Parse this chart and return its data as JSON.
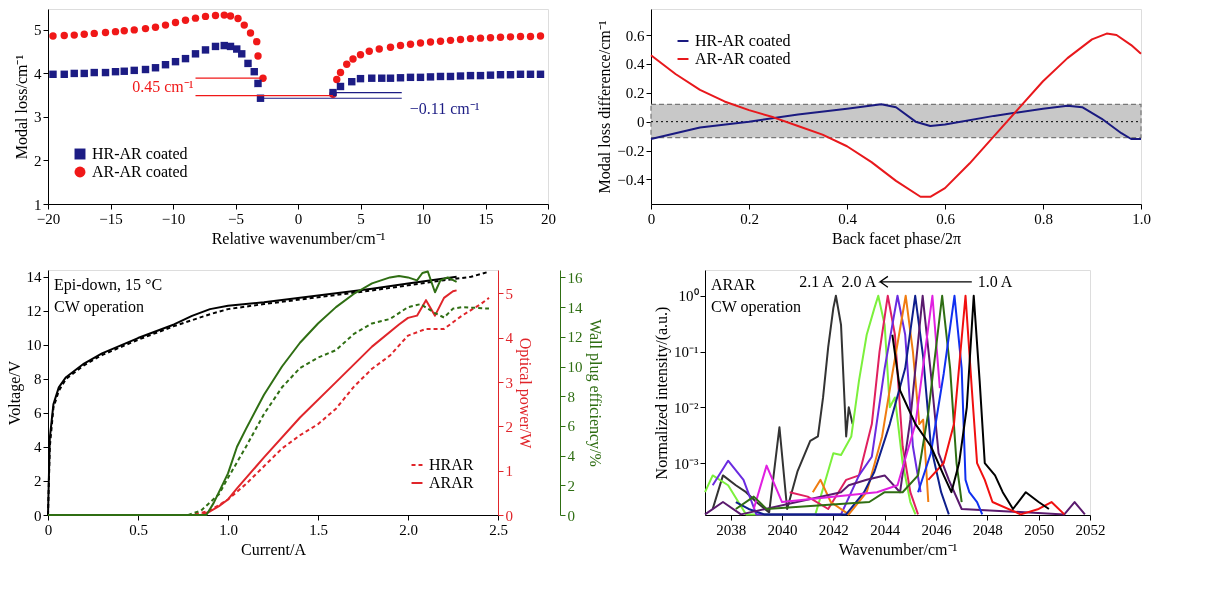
{
  "chart_data": [
    {
      "type": "scatter",
      "xlabel": "Relative wavenumber/cm⁻¹",
      "ylabel": "Modal loss/cm⁻¹",
      "xlim": [
        -20,
        20
      ],
      "ylim": [
        1,
        5.48
      ],
      "xticks": [
        {
          "value": -20,
          "label": "−20"
        },
        {
          "value": -15,
          "label": "−15"
        },
        {
          "value": -10,
          "label": "−10"
        },
        {
          "value": -5,
          "label": "−5"
        },
        0,
        5,
        10,
        15,
        20
      ],
      "yticks": [
        1,
        2,
        3,
        4,
        5
      ],
      "legend": "bottom left",
      "series": [
        {
          "name": "HR-AR coated",
          "color": "#1c1c84",
          "marker": "square",
          "x": [
            -19.6,
            -18.7,
            -17.9,
            -17.1,
            -16.3,
            -15.4,
            -14.6,
            -13.9,
            -13.1,
            -12.2,
            -11.4,
            -10.6,
            -9.8,
            -9.0,
            -8.2,
            -7.4,
            -6.6,
            -5.9,
            -5.4,
            -4.9,
            -4.5,
            -4.0,
            -3.5,
            -3.2,
            -3.0,
            2.8,
            3.4,
            4.3,
            5.0,
            5.9,
            6.7,
            7.4,
            8.2,
            9.0,
            9.8,
            10.6,
            11.4,
            12.2,
            13.0,
            13.8,
            14.6,
            15.4,
            16.2,
            17.0,
            17.8,
            18.6,
            19.4
          ],
          "values": [
            3.98,
            3.98,
            4.0,
            4.0,
            4.02,
            4.02,
            4.04,
            4.05,
            4.07,
            4.09,
            4.13,
            4.2,
            4.27,
            4.34,
            4.45,
            4.54,
            4.62,
            4.64,
            4.62,
            4.56,
            4.45,
            4.23,
            4.04,
            3.77,
            3.43,
            3.56,
            3.7,
            3.81,
            3.88,
            3.89,
            3.89,
            3.89,
            3.9,
            3.91,
            3.91,
            3.92,
            3.93,
            3.93,
            3.94,
            3.95,
            3.95,
            3.96,
            3.97,
            3.97,
            3.98,
            3.98,
            3.98
          ]
        },
        {
          "name": "AR-AR coated",
          "color": "#f01818",
          "marker": "circle",
          "x": [
            -19.6,
            -18.7,
            -17.9,
            -17.1,
            -16.3,
            -15.4,
            -14.6,
            -13.9,
            -13.1,
            -12.2,
            -11.4,
            -10.6,
            -9.8,
            -9.0,
            -8.2,
            -7.4,
            -6.6,
            -5.9,
            -5.4,
            -4.8,
            -4.3,
            -3.8,
            -3.3,
            -3.2,
            -2.8,
            2.8,
            3.1,
            3.4,
            3.9,
            4.4,
            5.0,
            5.7,
            6.5,
            7.4,
            8.2,
            9.0,
            9.8,
            10.6,
            11.4,
            12.2,
            13.0,
            13.8,
            14.6,
            15.4,
            16.2,
            17.0,
            17.8,
            18.6,
            19.4
          ],
          "values": [
            4.86,
            4.87,
            4.88,
            4.9,
            4.92,
            4.94,
            4.96,
            4.98,
            5.0,
            5.03,
            5.06,
            5.11,
            5.17,
            5.22,
            5.27,
            5.31,
            5.33,
            5.34,
            5.32,
            5.26,
            5.11,
            4.93,
            4.73,
            4.4,
            3.89,
            3.52,
            3.86,
            4.02,
            4.21,
            4.33,
            4.43,
            4.51,
            4.56,
            4.6,
            4.64,
            4.67,
            4.7,
            4.72,
            4.74,
            4.76,
            4.78,
            4.8,
            4.81,
            4.82,
            4.83,
            4.84,
            4.85,
            4.85,
            4.86
          ]
        },
        {
          "type": "line",
          "color": "#f01818",
          "x": [
            -8.2,
            -2.8
          ],
          "values": [
            3.89,
            3.89
          ]
        },
        {
          "type": "line",
          "color": "#f01818",
          "x": [
            -8.2,
            2.8
          ],
          "values": [
            3.49,
            3.49
          ]
        },
        {
          "type": "line",
          "color": "#1c1c84",
          "x": [
            2.8,
            8.3
          ],
          "values": [
            3.56,
            3.56
          ]
        },
        {
          "type": "line",
          "color": "#1c1c84",
          "x": [
            -2.8,
            8.3
          ],
          "values": [
            3.43,
            3.43
          ]
        }
      ],
      "annotations": [
        {
          "text": "0.45 cm⁻¹",
          "x": -8.2,
          "y": 3.49
        },
        {
          "text": "−0.11 cm⁻¹",
          "x": 8.3,
          "y": 3.43
        }
      ]
    },
    {
      "type": "line",
      "xlabel": "Back  facet phase/2π",
      "ylabel": "Modal loss difference/cm⁻¹",
      "xlim": [
        0,
        1
      ],
      "ylim": [
        -0.57,
        0.78
      ],
      "xticks": [
        0,
        0.2,
        0.4,
        0.6,
        0.8,
        {
          "value": 1,
          "label": "1.0"
        }
      ],
      "yticks": [
        {
          "value": -0.4,
          "label": "−0.4"
        },
        {
          "value": -0.2,
          "label": "−0.2"
        },
        0,
        0.2,
        0.4,
        0.6
      ],
      "legend": "top left",
      "bands": [
        {
          "axis": "y",
          "from": -0.11,
          "to": 0.12,
          "color": "#c8c8c8"
        }
      ],
      "ref_lines": [
        {
          "axis": "y",
          "value": 0,
          "color": "#000000",
          "line_style": "dotted"
        }
      ],
      "series": [
        {
          "name": "HR-AR coated",
          "color": "#1a1a80",
          "x": [
            0,
            0.1,
            0.2,
            0.3,
            0.4,
            0.47,
            0.5,
            0.54,
            0.57,
            0.6,
            0.7,
            0.8,
            0.85,
            0.88,
            0.92,
            0.96,
            0.98,
            1.0
          ],
          "values": [
            -0.12,
            -0.04,
            0.0,
            0.05,
            0.09,
            0.12,
            0.1,
            0.0,
            -0.03,
            -0.02,
            0.04,
            0.09,
            0.11,
            0.1,
            0.02,
            -0.08,
            -0.12,
            -0.12
          ]
        },
        {
          "name": "AR-AR coated",
          "color": "#e8181c",
          "x": [
            0,
            0.05,
            0.1,
            0.15,
            0.2,
            0.25,
            0.3,
            0.35,
            0.4,
            0.45,
            0.5,
            0.55,
            0.57,
            0.6,
            0.65,
            0.7,
            0.75,
            0.8,
            0.85,
            0.9,
            0.93,
            0.95,
            0.98,
            1.0
          ],
          "values": [
            0.46,
            0.33,
            0.22,
            0.14,
            0.08,
            0.03,
            -0.03,
            -0.09,
            -0.17,
            -0.28,
            -0.41,
            -0.52,
            -0.52,
            -0.46,
            -0.29,
            -0.1,
            0.09,
            0.28,
            0.44,
            0.57,
            0.61,
            0.6,
            0.53,
            0.47
          ]
        }
      ]
    },
    {
      "type": "line",
      "xlabel": "Current/A",
      "ylabel": "Voltage/V",
      "y2label": "Optical power/W",
      "y3label": "Wall plug efficiency/%",
      "xlim": [
        0,
        2.5
      ],
      "ylim": [
        0,
        14.4
      ],
      "y2lim": [
        0,
        5.53
      ],
      "y3lim": [
        0,
        16.5
      ],
      "xticks": [
        0,
        0.5,
        {
          "value": 1,
          "label": "1.0"
        },
        1.5,
        {
          "value": 2,
          "label": "2.0"
        },
        2.5
      ],
      "yticks": [
        0,
        2,
        4,
        6,
        8,
        10,
        12,
        14
      ],
      "y2ticks": [
        0,
        1,
        2,
        3,
        4,
        5
      ],
      "y3ticks": [
        0,
        2,
        4,
        6,
        8,
        10,
        12,
        14,
        16
      ],
      "legend": "bottom right",
      "annotations": [
        "Epi-down, 15 °C",
        "CW operation"
      ],
      "series": [
        {
          "color": "#000000",
          "line_style": "solid",
          "x": [
            0,
            0.01,
            0.03,
            0.06,
            0.1,
            0.2,
            0.3,
            0.5,
            0.7,
            0.8,
            0.9,
            1.0,
            1.2,
            1.5,
            1.8,
            2.0,
            2.27
          ],
          "values": [
            0,
            4.5,
            6.5,
            7.5,
            8.1,
            8.9,
            9.5,
            10.4,
            11.2,
            11.7,
            12.1,
            12.3,
            12.5,
            12.9,
            13.3,
            13.6,
            14.0
          ]
        },
        {
          "color": "#000000",
          "line_style": "dashed",
          "x": [
            0,
            0.01,
            0.03,
            0.06,
            0.1,
            0.2,
            0.3,
            0.5,
            0.7,
            0.9,
            1.0,
            1.2,
            1.5,
            1.8,
            2.0,
            2.2,
            2.35,
            2.45
          ],
          "values": [
            0,
            4.0,
            6.3,
            7.3,
            8.0,
            8.8,
            9.4,
            10.3,
            11.1,
            11.8,
            12.1,
            12.4,
            12.8,
            13.2,
            13.5,
            13.8,
            14.0,
            14.3
          ]
        },
        {
          "color": "#2f6e13",
          "line_style": "solid",
          "axis": "y3",
          "x": [
            0,
            0.88,
            0.92,
            1.0,
            1.05,
            1.1,
            1.2,
            1.3,
            1.4,
            1.5,
            1.6,
            1.7,
            1.8,
            1.9,
            1.95,
            2.0,
            2.05,
            2.08,
            2.11,
            2.15,
            2.18,
            2.22,
            2.27
          ],
          "values": [
            0,
            0,
            0.8,
            2.8,
            4.6,
            5.8,
            8.1,
            10.0,
            11.6,
            12.9,
            14.0,
            14.9,
            15.6,
            16.0,
            16.1,
            16.0,
            15.8,
            16.3,
            16.4,
            15.0,
            15.8,
            16.0,
            15.7
          ]
        },
        {
          "color": "#2f6e13",
          "line_style": "dashed",
          "axis": "y3",
          "x": [
            0,
            0.78,
            0.85,
            0.95,
            1.0,
            1.1,
            1.2,
            1.3,
            1.4,
            1.5,
            1.6,
            1.7,
            1.8,
            1.9,
            2.0,
            2.07,
            2.15,
            2.2,
            2.25,
            2.3,
            2.45
          ],
          "values": [
            0,
            0,
            0.3,
            1.4,
            2.5,
            4.6,
            6.8,
            8.6,
            9.9,
            10.6,
            11.1,
            12.2,
            12.9,
            13.2,
            14.0,
            14.2,
            13.6,
            13.3,
            13.9,
            14.0,
            13.9
          ]
        },
        {
          "name": "HRAR",
          "color": "#e0252a",
          "line_style": "dashed",
          "axis": "y2",
          "x": [
            0,
            0.8,
            0.9,
            1.0,
            1.1,
            1.2,
            1.3,
            1.4,
            1.5,
            1.6,
            1.7,
            1.8,
            1.9,
            2.0,
            2.1,
            2.2,
            2.25,
            2.3,
            2.4,
            2.45
          ],
          "values": [
            0,
            0,
            0.1,
            0.35,
            0.7,
            1.1,
            1.5,
            1.8,
            2.05,
            2.4,
            2.9,
            3.3,
            3.6,
            4.05,
            4.2,
            4.2,
            4.35,
            4.5,
            4.75,
            4.9
          ]
        },
        {
          "name": "ARAR",
          "color": "#e0252a",
          "line_style": "solid",
          "axis": "y2",
          "x": [
            0,
            0.85,
            0.9,
            0.95,
            1.0,
            1.05,
            1.2,
            1.4,
            1.6,
            1.8,
            1.95,
            2.0,
            2.05,
            2.1,
            2.15,
            2.2,
            2.25,
            2.27
          ],
          "values": [
            0,
            0,
            0.08,
            0.2,
            0.35,
            0.6,
            1.3,
            2.2,
            3.0,
            3.8,
            4.3,
            4.45,
            4.5,
            4.85,
            4.5,
            4.9,
            5.05,
            5.07
          ]
        }
      ]
    },
    {
      "type": "line",
      "xlabel": "Wavenumber/cm⁻¹",
      "ylabel": "Normalized intensity/(a.u.)",
      "log": "y",
      "xlim": [
        2037,
        2052
      ],
      "ylim": [
        0.000117,
        2.9
      ],
      "xticks": [
        2038,
        2040,
        2042,
        2044,
        2046,
        2048,
        2050,
        2052
      ],
      "yticks": [
        {
          "value": 0.001,
          "label": "10⁻³"
        },
        {
          "value": 0.01,
          "label": "10⁻²"
        },
        {
          "value": 0.1,
          "label": "10⁻¹"
        },
        {
          "value": 1,
          "label": "10⁰"
        }
      ],
      "annotations": [
        "ARAR",
        "CW operation",
        {
          "text": "2.1 A",
          "x": 2042.1,
          "y": 1
        },
        {
          "text": "2.0 A",
          "x": 2043.75,
          "y": 1
        },
        {
          "text": "1.0 A",
          "x": 2047.47,
          "y": 1
        }
      ],
      "series": [
        {
          "color": "#333333",
          "x": [
            2037.3,
            2037.7,
            2038.2,
            2038.6,
            2039.0,
            2039.5,
            2039.9,
            2040.2,
            2040.6,
            2041.1,
            2041.4,
            2041.6,
            2041.8,
            2042.0,
            2042.1,
            2042.3,
            2042.5,
            2042.6,
            2042.75
          ],
          "values": [
            0.00015,
            0.0006,
            0.0004,
            0.0003,
            0.0002,
            0.00013,
            0.0044,
            0.00015,
            0.0007,
            0.0025,
            0.003,
            0.015,
            0.12,
            0.6,
            1,
            0.3,
            0.003,
            0.01,
            0.005
          ]
        },
        {
          "color": "#7cf03c",
          "x": [
            2037.0,
            2037.3,
            2037.9,
            2038.3,
            2038.6,
            2041.3,
            2041.6,
            2042.0,
            2042.3,
            2042.7,
            2043.0,
            2043.3,
            2043.6,
            2043.75,
            2044.0,
            2044.2,
            2044.4,
            2044.7,
            2045.0,
            2045.2
          ],
          "values": [
            0.0003,
            0.0006,
            0.0004,
            0.0002,
            0.00012,
            0.00012,
            0.00035,
            0.0015,
            0.0014,
            0.003,
            0.03,
            0.2,
            0.6,
            1,
            0.3,
            0.01,
            0.015,
            0.001,
            0.0002,
            0.00012
          ]
        },
        {
          "color": "#e0205f",
          "x": [
            2040.3,
            2041.0,
            2041.8,
            2042.5,
            2043.0,
            2043.5,
            2043.8,
            2044.12,
            2044.4,
            2044.7,
            2045.0,
            2045.3
          ],
          "values": [
            0.0003,
            0.00025,
            0.00015,
            0.0005,
            0.0006,
            0.005,
            0.1,
            1,
            0.2,
            0.002,
            0.0003,
            0.00012
          ]
        },
        {
          "color": "#6a2be0",
          "x": [
            2037.3,
            2037.9,
            2038.5,
            2039.0,
            2042.3,
            2043.0,
            2043.5,
            2044.0,
            2044.5,
            2044.8,
            2045.1,
            2045.4
          ],
          "values": [
            0.0004,
            0.0011,
            0.0005,
            0.00012,
            0.00012,
            0.0006,
            0.0013,
            0.05,
            1,
            0.2,
            0.002,
            0.0003
          ]
        },
        {
          "color": "#f07c10",
          "x": [
            2041.2,
            2041.5,
            2041.9,
            2042.6,
            2043.3,
            2043.9,
            2044.3,
            2044.82,
            2045.1,
            2045.35,
            2045.5,
            2045.7
          ],
          "values": [
            0.0003,
            0.0005,
            0.0002,
            0.00012,
            0.0003,
            0.003,
            0.04,
            1,
            0.1,
            0.005,
            0.006,
            0.0002
          ]
        },
        {
          "color": "#0f1f8c",
          "x": [
            2038.2,
            2038.7,
            2039.3,
            2042.5,
            2043.2,
            2043.6,
            2044.2,
            2044.8,
            2045.19,
            2045.5,
            2045.8,
            2046.2,
            2046.5
          ],
          "values": [
            0.0002,
            0.00015,
            0.00012,
            0.00012,
            0.0003,
            0.0007,
            0.005,
            0.05,
            1,
            0.08,
            0.002,
            0.0003,
            0.00012
          ]
        },
        {
          "color": "#5a1a6e",
          "x": [
            2037.0,
            2037.7,
            2038.4,
            2042.3,
            2042.6,
            2043.3,
            2044.0,
            2044.6,
            2045.0,
            2045.48,
            2045.8,
            2046.1,
            2046.5,
            2047.0,
            2051.0,
            2051.4,
            2051.8
          ],
          "values": [
            0.00012,
            0.0002,
            0.00012,
            0.0003,
            0.0004,
            0.0005,
            0.0006,
            0.0003,
            0.006,
            1,
            0.04,
            0.0015,
            0.0005,
            0.00015,
            0.00012,
            0.0002,
            0.00012
          ]
        },
        {
          "color": "#e020e0",
          "x": [
            2038.9,
            2039.4,
            2040.0,
            2043.7,
            2044.5,
            2045.2,
            2045.86,
            2046.15
          ],
          "values": [
            0.00015,
            0.0009,
            0.0002,
            0.0003,
            0.0004,
            0.005,
            1,
            0.022
          ]
        },
        {
          "color": "#2f6e13",
          "x": [
            2038.2,
            2038.9,
            2039.4,
            2043.4,
            2044.0,
            2044.7,
            2045.3,
            2045.7,
            2046.24,
            2046.55,
            2046.8,
            2047.0
          ],
          "values": [
            0.00015,
            0.00025,
            0.00015,
            0.0002,
            0.0003,
            0.0003,
            0.0006,
            0.008,
            1,
            0.05,
            0.001,
            0.0002
          ]
        },
        {
          "color": "#1030f0",
          "x": [
            2045.3,
            2045.8,
            2046.3,
            2046.72,
            2047.0,
            2047.15,
            2047.3,
            2047.6,
            2047.8
          ],
          "values": [
            0.0003,
            0.0015,
            0.04,
            1,
            0.05,
            0.0005,
            0.0003,
            0.0002,
            0.00012
          ]
        },
        {
          "color": "#f01010",
          "x": [
            2045.7,
            2046.3,
            2046.7,
            2047.15,
            2047.4,
            2047.6,
            2047.9,
            2048.2,
            2049.3,
            2050.0,
            2050.5,
            2051.0
          ],
          "values": [
            0.0005,
            0.001,
            0.005,
            1,
            0.02,
            0.001,
            0.0005,
            0.0002,
            0.00012,
            0.00015,
            0.0002,
            0.00012
          ]
        },
        {
          "color": "#000000",
          "x": [
            2044.3,
            2044.6,
            2045.2,
            2045.8,
            2046.3,
            2046.6,
            2046.9,
            2047.2,
            2047.47,
            2047.7,
            2047.9,
            2048.3,
            2048.6,
            2049.0,
            2049.5,
            2050.0,
            2050.4
          ],
          "values": [
            0.2,
            0.02,
            0.005,
            0.002,
            0.0006,
            0.0003,
            0.001,
            0.01,
            1,
            0.03,
            0.001,
            0.0006,
            0.0003,
            0.00015,
            0.0003,
            0.0002,
            0.00015
          ]
        }
      ]
    }
  ]
}
